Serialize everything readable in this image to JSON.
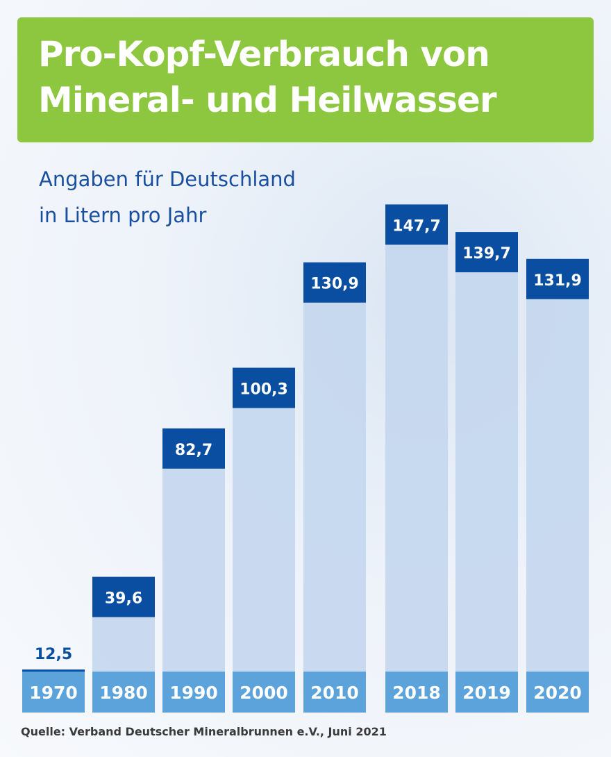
{
  "title_lines": [
    "Pro-Kopf-Verbrauch von",
    "Mineral- und Heilwasser"
  ],
  "subtitle_lines": [
    "Angaben für Deutschland",
    "in Litern pro Jahr"
  ],
  "source": "Quelle: Verband Deutscher Mineralbrunnen e.V., Juni 2021",
  "colors": {
    "title_bg": "#8dc63f",
    "label_box": "#0a4ea2",
    "bar": "#c4d7ee",
    "year_box": "#5ba3da"
  },
  "chart_data": {
    "type": "bar",
    "categories": [
      "1970",
      "1980",
      "1990",
      "2000",
      "2010",
      "2018",
      "2019",
      "2020"
    ],
    "values": [
      12.5,
      39.6,
      82.7,
      100.3,
      130.9,
      147.7,
      139.7,
      131.9
    ],
    "data_labels": [
      "12,5",
      "39,6",
      "82,7",
      "100,3",
      "130,9",
      "147,7",
      "139,7",
      "131,9"
    ],
    "title": "Pro-Kopf-Verbrauch von Mineral- und Heilwasser",
    "xlabel": "",
    "ylabel": "",
    "grid": false
  }
}
